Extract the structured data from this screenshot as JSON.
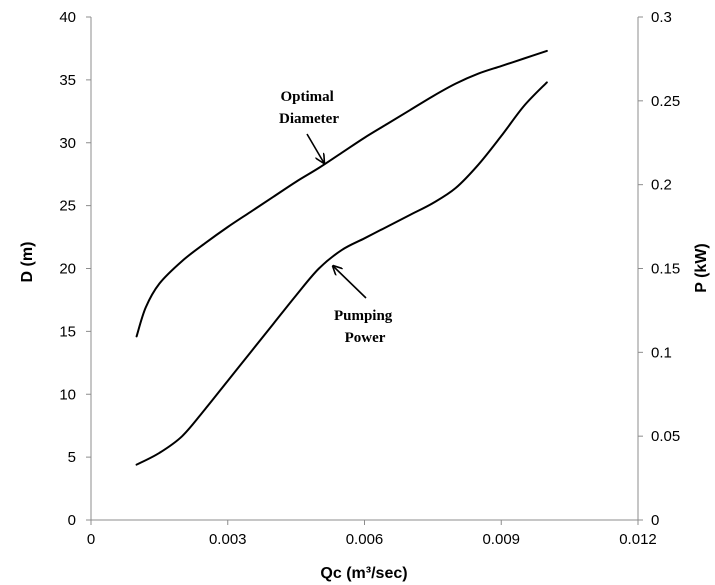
{
  "chart_data": {
    "type": "line",
    "title": "",
    "xlabel": "Qc (m³/sec)",
    "ylabel_left": "D (m)",
    "ylabel_right": "P (kW)",
    "xlim": [
      0,
      0.012
    ],
    "ylim_left": [
      0,
      40
    ],
    "ylim_right": [
      0,
      0.3
    ],
    "xticks": [
      "0",
      "0.003",
      "0.006",
      "0.009",
      "0.012"
    ],
    "yticks_left": [
      "0",
      "5",
      "10",
      "15",
      "20",
      "25",
      "30",
      "35",
      "40"
    ],
    "yticks_right": [
      "0",
      "0.05",
      "0.1",
      "0.15",
      "0.2",
      "0.25",
      "0.3"
    ],
    "grid": false,
    "series": [
      {
        "name": "Optimal Diameter",
        "axis": "left",
        "color": "#000000",
        "x": [
          0.001,
          0.0012,
          0.0015,
          0.002,
          0.0025,
          0.003,
          0.0035,
          0.004,
          0.0045,
          0.005,
          0.0055,
          0.006,
          0.0065,
          0.007,
          0.0075,
          0.008,
          0.0085,
          0.009,
          0.0095,
          0.01
        ],
        "y": [
          14.6,
          16.9,
          18.8,
          20.6,
          22.0,
          23.3,
          24.5,
          25.7,
          26.9,
          28.0,
          29.2,
          30.4,
          31.5,
          32.6,
          33.7,
          34.7,
          35.5,
          36.1,
          36.7,
          37.3
        ]
      },
      {
        "name": "Pumping Power",
        "axis": "right",
        "color": "#000000",
        "x": [
          0.001,
          0.0015,
          0.002,
          0.0025,
          0.003,
          0.0035,
          0.004,
          0.0045,
          0.005,
          0.0055,
          0.006,
          0.0065,
          0.007,
          0.0075,
          0.008,
          0.0085,
          0.009,
          0.0095,
          0.01
        ],
        "y": [
          0.033,
          0.04,
          0.05,
          0.066,
          0.083,
          0.1,
          0.117,
          0.134,
          0.15,
          0.161,
          0.168,
          0.175,
          0.182,
          0.189,
          0.198,
          0.212,
          0.229,
          0.247,
          0.261
        ]
      }
    ],
    "annotations": [
      {
        "lines": [
          "Optimal",
          "Diameter"
        ],
        "target_series": "Optimal Diameter"
      },
      {
        "lines": [
          "Pumping",
          "Power"
        ],
        "target_series": "Pumping Power"
      }
    ]
  }
}
